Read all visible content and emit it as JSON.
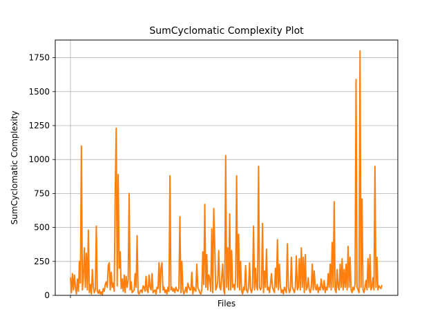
{
  "chart_data": {
    "type": "line",
    "title": "SumCyclomatic Complexity Plot",
    "xlabel": "Files",
    "ylabel": "SumCyclomatic Complexity",
    "ylim": [
      0,
      1880
    ],
    "yticks": [
      0,
      250,
      500,
      750,
      1000,
      1250,
      1500,
      1750
    ],
    "ytick_labels": [
      "0",
      "250",
      "500",
      "750",
      "1000",
      "1250",
      "1500",
      "1750"
    ],
    "grid": true,
    "line_color": "#ff7f0e",
    "series": [
      {
        "values": [
          130,
          20,
          160,
          40,
          150,
          60,
          10,
          120,
          30,
          250,
          90,
          1100,
          40,
          140,
          350,
          60,
          310,
          40,
          480,
          20,
          80,
          10,
          190,
          60,
          20,
          40,
          510,
          30,
          15,
          40,
          10,
          25,
          5,
          50,
          30,
          80,
          100,
          60,
          220,
          240,
          40,
          170,
          60,
          90,
          30,
          760,
          1230,
          70,
          890,
          200,
          320,
          50,
          120,
          30,
          150,
          20,
          140,
          60,
          110,
          750,
          40,
          100,
          20,
          30,
          40,
          160,
          60,
          440,
          20,
          10,
          30,
          40,
          20,
          70,
          60,
          30,
          140,
          40,
          20,
          150,
          60,
          40,
          160,
          20,
          30,
          40,
          10,
          60,
          50,
          240,
          20,
          200,
          240,
          40,
          60,
          20,
          40,
          10,
          60,
          30,
          880,
          40,
          60,
          30,
          50,
          20,
          60,
          40,
          30,
          50,
          580,
          20,
          250,
          40,
          10,
          30,
          60,
          20,
          90,
          60,
          40,
          40,
          170,
          10,
          60,
          40,
          30,
          230,
          60,
          40,
          20,
          10,
          40,
          320,
          80,
          670,
          60,
          300,
          40,
          150,
          120,
          30,
          490,
          20,
          640,
          370,
          40,
          60,
          100,
          330,
          60,
          40,
          130,
          230,
          40,
          10,
          1030,
          60,
          350,
          40,
          600,
          40,
          330,
          60,
          80,
          40,
          120,
          880,
          60,
          450,
          40,
          250,
          30,
          10,
          60,
          40,
          220,
          40,
          20,
          60,
          240,
          40,
          20,
          60,
          510,
          40,
          200,
          60,
          40,
          950,
          60,
          40,
          60,
          530,
          20,
          180,
          60,
          340,
          40,
          60,
          20,
          80,
          160,
          60,
          40,
          20,
          200,
          60,
          410,
          40,
          230,
          60,
          20,
          40,
          10,
          60,
          40,
          20,
          380,
          60,
          20,
          40,
          280,
          60,
          40,
          20,
          60,
          290,
          40,
          60,
          270,
          40,
          350,
          60,
          280,
          20,
          300,
          40,
          60,
          130,
          40,
          20,
          60,
          230,
          40,
          180,
          60,
          40,
          80,
          20,
          60,
          40,
          120,
          60,
          40,
          110,
          20,
          60,
          40,
          160,
          60,
          230,
          40,
          390,
          60,
          690,
          40,
          20,
          190,
          60,
          40,
          230,
          60,
          270,
          40,
          190,
          60,
          230,
          40,
          360,
          60,
          280,
          40,
          20,
          60,
          40,
          80,
          1590,
          60,
          40,
          20,
          1800,
          60,
          710,
          40,
          20,
          60,
          110,
          40,
          270,
          60,
          300,
          40,
          60,
          130,
          40,
          950,
          60,
          280,
          40,
          70,
          60,
          50,
          75
        ]
      }
    ]
  }
}
